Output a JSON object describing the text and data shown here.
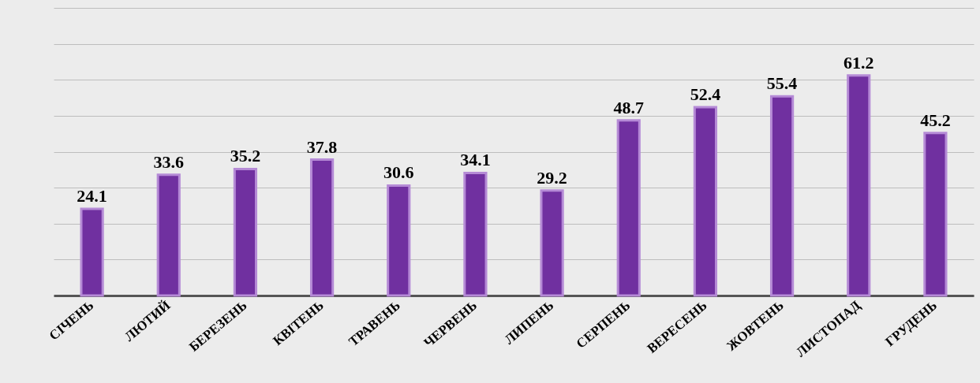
{
  "chart_data": {
    "type": "bar",
    "categories": [
      "СІЧЕНЬ",
      "ЛЮТИЙ",
      "БЕРЕЗЕНЬ",
      "КВІТЕНЬ",
      "ТРАВЕНЬ",
      "ЧЕРВЕНЬ",
      "ЛИПЕНЬ",
      "СЕРПЕНЬ",
      "ВЕРЕСЕНЬ",
      "ЖОВТЕНЬ",
      "ЛИСТОПАД",
      "ГРУДЕНЬ"
    ],
    "values": [
      24.1,
      33.6,
      35.2,
      37.8,
      30.6,
      34.1,
      29.2,
      48.7,
      52.4,
      55.4,
      61.2,
      45.2
    ],
    "color": "#7030a0",
    "ylim": [
      0,
      80
    ],
    "yticks": [
      {
        "value": 0,
        "label": null
      },
      {
        "value": 10,
        "label": null
      },
      {
        "value": 20,
        "label": null
      },
      {
        "value": 30,
        "label": null
      },
      {
        "value": 40,
        "label": null
      },
      {
        "value": 50,
        "label": null
      },
      {
        "value": 60,
        "label": null
      },
      {
        "value": 70,
        "label": null
      },
      {
        "value": 80,
        "label": null
      }
    ],
    "grid": "y",
    "tick_labels": "x",
    "data_labels": true
  }
}
